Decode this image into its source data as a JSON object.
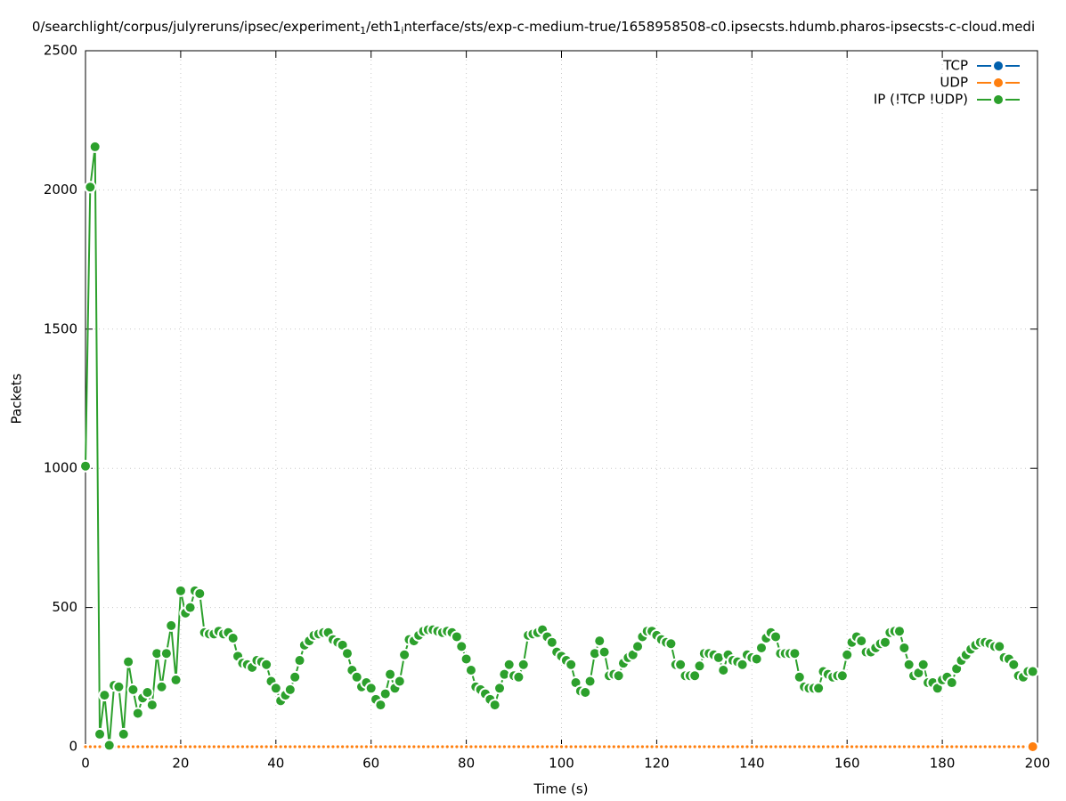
{
  "chart_data": {
    "type": "line",
    "title_parts": [
      "0/searchlight/corpus/julyreruns/ipsec/experiment",
      "1",
      "/eth1",
      "i",
      "nterface/sts/exp-c-medium-true/1658958508-c0.ipsecsts.hdumb.pharos-ipsecsts-c-cloud.medi"
    ],
    "xlabel": "Time (s)",
    "ylabel": "Packets",
    "xlim": [
      0,
      200
    ],
    "ylim": [
      0,
      2500
    ],
    "xticks": [
      0,
      20,
      40,
      60,
      80,
      100,
      120,
      140,
      160,
      180,
      200
    ],
    "yticks": [
      0,
      500,
      1000,
      1500,
      2000,
      2500
    ],
    "grid": true,
    "legend": "top-right",
    "x": [
      0,
      1,
      2,
      3,
      4,
      5,
      6,
      7,
      8,
      9,
      10,
      11,
      12,
      13,
      14,
      15,
      16,
      17,
      18,
      19,
      20,
      21,
      22,
      23,
      24,
      25,
      26,
      27,
      28,
      29,
      30,
      31,
      32,
      33,
      34,
      35,
      36,
      37,
      38,
      39,
      40,
      41,
      42,
      43,
      44,
      45,
      46,
      47,
      48,
      49,
      50,
      51,
      52,
      53,
      54,
      55,
      56,
      57,
      58,
      59,
      60,
      61,
      62,
      63,
      64,
      65,
      66,
      67,
      68,
      69,
      70,
      71,
      72,
      73,
      74,
      75,
      76,
      77,
      78,
      79,
      80,
      81,
      82,
      83,
      84,
      85,
      86,
      87,
      88,
      89,
      90,
      91,
      92,
      93,
      94,
      95,
      96,
      97,
      98,
      99,
      100,
      101,
      102,
      103,
      104,
      105,
      106,
      107,
      108,
      109,
      110,
      111,
      112,
      113,
      114,
      115,
      116,
      117,
      118,
      119,
      120,
      121,
      122,
      123,
      124,
      125,
      126,
      127,
      128,
      129,
      130,
      131,
      132,
      133,
      134,
      135,
      136,
      137,
      138,
      139,
      140,
      141,
      142,
      143,
      144,
      145,
      146,
      147,
      148,
      149,
      150,
      151,
      152,
      153,
      154,
      155,
      156,
      157,
      158,
      159,
      160,
      161,
      162,
      163,
      164,
      165,
      166,
      167,
      168,
      169,
      170,
      171,
      172,
      173,
      174,
      175,
      176,
      177,
      178,
      179,
      180,
      181,
      182,
      183,
      184,
      185,
      186,
      187,
      188,
      189,
      190,
      191,
      192,
      193,
      194,
      195,
      196,
      197,
      198,
      199
    ],
    "series": [
      {
        "name": "TCP",
        "color": "#0060ad",
        "values": [
          0,
          0,
          0,
          0,
          0,
          0,
          0,
          0,
          0,
          0,
          0,
          0,
          0,
          0,
          0,
          0,
          0,
          0,
          0,
          0,
          0,
          0,
          0,
          0,
          0,
          0,
          0,
          0,
          0,
          0,
          0,
          0,
          0,
          0,
          0,
          0,
          0,
          0,
          0,
          0,
          0,
          0,
          0,
          0,
          0,
          0,
          0,
          0,
          0,
          0,
          0,
          0,
          0,
          0,
          0,
          0,
          0,
          0,
          0,
          0,
          0,
          0,
          0,
          0,
          0,
          0,
          0,
          0,
          0,
          0,
          0,
          0,
          0,
          0,
          0,
          0,
          0,
          0,
          0,
          0,
          0,
          0,
          0,
          0,
          0,
          0,
          0,
          0,
          0,
          0,
          0,
          0,
          0,
          0,
          0,
          0,
          0,
          0,
          0,
          0,
          0,
          0,
          0,
          0,
          0,
          0,
          0,
          0,
          0,
          0,
          0,
          0,
          0,
          0,
          0,
          0,
          0,
          0,
          0,
          0,
          0,
          0,
          0,
          0,
          0,
          0,
          0,
          0,
          0,
          0,
          0,
          0,
          0,
          0,
          0,
          0,
          0,
          0,
          0,
          0,
          0,
          0,
          0,
          0,
          0,
          0,
          0,
          0,
          0,
          0,
          0,
          0,
          0,
          0,
          0,
          0,
          0,
          0,
          0,
          0,
          0,
          0,
          0,
          0,
          0,
          0,
          0,
          0,
          0,
          0,
          0,
          0,
          0,
          0,
          0,
          0,
          0,
          0,
          0,
          0,
          0,
          0,
          0,
          0,
          0,
          0,
          0,
          0,
          0,
          0,
          0,
          0,
          0,
          0,
          0,
          0,
          0,
          0,
          0,
          0
        ]
      },
      {
        "name": "UDP",
        "color": "#ff7f0e",
        "values": [
          0,
          0,
          0,
          0,
          0,
          0,
          0,
          0,
          0,
          0,
          0,
          0,
          0,
          0,
          0,
          0,
          0,
          0,
          0,
          0,
          0,
          0,
          0,
          0,
          0,
          0,
          0,
          0,
          0,
          0,
          0,
          0,
          0,
          0,
          0,
          0,
          0,
          0,
          0,
          0,
          0,
          0,
          0,
          0,
          0,
          0,
          0,
          0,
          0,
          0,
          0,
          0,
          0,
          0,
          0,
          0,
          0,
          0,
          0,
          0,
          0,
          0,
          0,
          0,
          0,
          0,
          0,
          0,
          0,
          0,
          0,
          0,
          0,
          0,
          0,
          0,
          0,
          0,
          0,
          0,
          0,
          0,
          0,
          0,
          0,
          0,
          0,
          0,
          0,
          0,
          0,
          0,
          0,
          0,
          0,
          0,
          0,
          0,
          0,
          0,
          0,
          0,
          0,
          0,
          0,
          0,
          0,
          0,
          0,
          0,
          0,
          0,
          0,
          0,
          0,
          0,
          0,
          0,
          0,
          0,
          0,
          0,
          0,
          0,
          0,
          0,
          0,
          0,
          0,
          0,
          0,
          0,
          0,
          0,
          0,
          0,
          0,
          0,
          0,
          0,
          0,
          0,
          0,
          0,
          0,
          0,
          0,
          0,
          0,
          0,
          0,
          0,
          0,
          0,
          0,
          0,
          0,
          0,
          0,
          0,
          0,
          0,
          0,
          0,
          0,
          0,
          0,
          0,
          0,
          0,
          0,
          0,
          0,
          0,
          0,
          0,
          0,
          0,
          0,
          0,
          0,
          0,
          0,
          0,
          0,
          0,
          0,
          0,
          0,
          0,
          0,
          0,
          0,
          0,
          0,
          0,
          0,
          0,
          0,
          0
        ]
      },
      {
        "name": "IP (!TCP  !UDP)",
        "color": "#2ca02c",
        "values": [
          1008,
          2010,
          2155,
          45,
          185,
          5,
          220,
          215,
          45,
          305,
          205,
          120,
          175,
          195,
          150,
          335,
          215,
          335,
          435,
          240,
          560,
          480,
          500,
          560,
          550,
          410,
          405,
          405,
          415,
          405,
          410,
          390,
          325,
          300,
          295,
          285,
          310,
          305,
          295,
          235,
          210,
          165,
          185,
          205,
          250,
          310,
          365,
          380,
          400,
          405,
          410,
          410,
          385,
          375,
          365,
          335,
          275,
          250,
          215,
          230,
          210,
          170,
          150,
          190,
          260,
          210,
          235,
          330,
          385,
          380,
          400,
          415,
          420,
          420,
          415,
          410,
          415,
          410,
          395,
          360,
          315,
          275,
          215,
          205,
          190,
          170,
          150,
          210,
          260,
          295,
          255,
          250,
          295,
          400,
          405,
          410,
          420,
          395,
          375,
          340,
          325,
          310,
          295,
          230,
          200,
          195,
          235,
          335,
          380,
          340,
          255,
          260,
          255,
          300,
          320,
          330,
          360,
          395,
          415,
          415,
          400,
          385,
          375,
          370,
          295,
          295,
          255,
          255,
          255,
          290,
          335,
          335,
          330,
          320,
          275,
          330,
          310,
          305,
          295,
          330,
          320,
          315,
          355,
          390,
          410,
          395,
          335,
          335,
          335,
          335,
          250,
          215,
          210,
          210,
          210,
          270,
          260,
          250,
          255,
          255,
          330,
          375,
          395,
          380,
          340,
          340,
          355,
          370,
          375,
          410,
          415,
          415,
          355,
          295,
          255,
          265,
          295,
          230,
          230,
          210,
          240,
          250,
          230,
          280,
          310,
          330,
          350,
          365,
          375,
          375,
          370,
          360,
          360,
          320,
          315,
          295,
          255,
          250,
          270,
          270
        ]
      }
    ]
  }
}
